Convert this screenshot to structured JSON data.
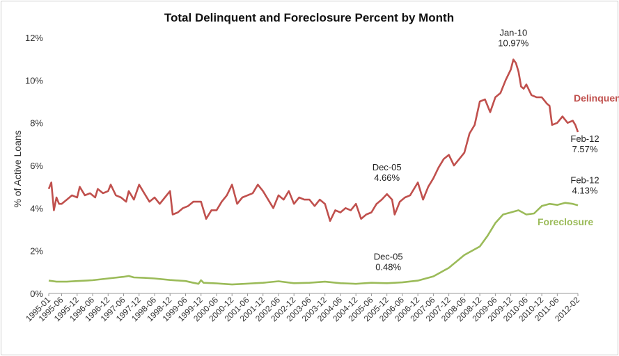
{
  "chart_data": {
    "type": "line",
    "title": "Total Delinquent and Foreclosure Percent by Month",
    "xlabel": "",
    "ylabel": "% of Active Loans",
    "ylim": [
      0,
      12
    ],
    "yticks": [
      "0%",
      "2%",
      "4%",
      "6%",
      "8%",
      "10%",
      "12%"
    ],
    "xticks": [
      "1995-01",
      "1995-06",
      "1995-12",
      "1996-06",
      "1996-12",
      "1997-06",
      "1997-12",
      "1998-06",
      "1998-12",
      "1999-06",
      "1999-12",
      "2000-06",
      "2000-12",
      "2001-06",
      "2001-12",
      "2002-06",
      "2002-12",
      "2003-06",
      "2003-12",
      "2004-06",
      "2004-12",
      "2005-06",
      "2005-12",
      "2006-06",
      "2006-12",
      "2007-06",
      "2007-12",
      "2008-06",
      "2008-12",
      "2009-06",
      "2009-12",
      "2010-06",
      "2010-12",
      "2011-06",
      "2012-02"
    ],
    "grid": false,
    "legend": "inline labels",
    "x_start": "1995-01",
    "x_end": "2012-02",
    "series": [
      {
        "name": "Delinquent",
        "color": "#c0504d",
        "points": [
          [
            "1995-01",
            4.9
          ],
          [
            "1995-02",
            5.2
          ],
          [
            "1995-03",
            3.9
          ],
          [
            "1995-04",
            4.5
          ],
          [
            "1995-05",
            4.2
          ],
          [
            "1995-06",
            4.2
          ],
          [
            "1995-08",
            4.4
          ],
          [
            "1995-10",
            4.6
          ],
          [
            "1995-12",
            4.5
          ],
          [
            "1996-01",
            5.0
          ],
          [
            "1996-03",
            4.6
          ],
          [
            "1996-05",
            4.7
          ],
          [
            "1996-07",
            4.5
          ],
          [
            "1996-08",
            4.9
          ],
          [
            "1996-10",
            4.7
          ],
          [
            "1996-12",
            4.8
          ],
          [
            "1997-01",
            5.1
          ],
          [
            "1997-03",
            4.6
          ],
          [
            "1997-05",
            4.5
          ],
          [
            "1997-07",
            4.3
          ],
          [
            "1997-08",
            4.8
          ],
          [
            "1997-10",
            4.4
          ],
          [
            "1997-12",
            5.1
          ],
          [
            "1998-02",
            4.7
          ],
          [
            "1998-04",
            4.3
          ],
          [
            "1998-06",
            4.5
          ],
          [
            "1998-08",
            4.2
          ],
          [
            "1998-10",
            4.5
          ],
          [
            "1998-12",
            4.8
          ],
          [
            "1999-01",
            3.7
          ],
          [
            "1999-03",
            3.8
          ],
          [
            "1999-05",
            4.0
          ],
          [
            "1999-07",
            4.1
          ],
          [
            "1999-09",
            4.3
          ],
          [
            "1999-12",
            4.3
          ],
          [
            "2000-02",
            3.5
          ],
          [
            "2000-04",
            3.9
          ],
          [
            "2000-06",
            3.9
          ],
          [
            "2000-08",
            4.3
          ],
          [
            "2000-10",
            4.6
          ],
          [
            "2000-12",
            5.1
          ],
          [
            "2001-02",
            4.2
          ],
          [
            "2001-04",
            4.5
          ],
          [
            "2001-06",
            4.6
          ],
          [
            "2001-08",
            4.7
          ],
          [
            "2001-10",
            5.1
          ],
          [
            "2001-12",
            4.8
          ],
          [
            "2002-02",
            4.4
          ],
          [
            "2002-04",
            4.0
          ],
          [
            "2002-06",
            4.6
          ],
          [
            "2002-08",
            4.4
          ],
          [
            "2002-10",
            4.8
          ],
          [
            "2002-12",
            4.2
          ],
          [
            "2003-02",
            4.5
          ],
          [
            "2003-04",
            4.4
          ],
          [
            "2003-06",
            4.4
          ],
          [
            "2003-08",
            4.1
          ],
          [
            "2003-10",
            4.4
          ],
          [
            "2003-12",
            4.2
          ],
          [
            "2004-02",
            3.4
          ],
          [
            "2004-04",
            3.9
          ],
          [
            "2004-06",
            3.8
          ],
          [
            "2004-08",
            4.0
          ],
          [
            "2004-10",
            3.9
          ],
          [
            "2004-12",
            4.2
          ],
          [
            "2005-02",
            3.5
          ],
          [
            "2005-04",
            3.7
          ],
          [
            "2005-06",
            3.8
          ],
          [
            "2005-08",
            4.2
          ],
          [
            "2005-10",
            4.4
          ],
          [
            "2005-12",
            4.66
          ],
          [
            "2006-02",
            4.4
          ],
          [
            "2006-03",
            3.7
          ],
          [
            "2006-05",
            4.3
          ],
          [
            "2006-07",
            4.5
          ],
          [
            "2006-09",
            4.6
          ],
          [
            "2006-12",
            5.2
          ],
          [
            "2007-02",
            4.4
          ],
          [
            "2007-04",
            5.0
          ],
          [
            "2007-06",
            5.4
          ],
          [
            "2007-08",
            5.9
          ],
          [
            "2007-10",
            6.3
          ],
          [
            "2007-12",
            6.5
          ],
          [
            "2008-02",
            6.0
          ],
          [
            "2008-04",
            6.3
          ],
          [
            "2008-06",
            6.6
          ],
          [
            "2008-08",
            7.5
          ],
          [
            "2008-10",
            7.9
          ],
          [
            "2008-12",
            9.0
          ],
          [
            "2009-02",
            9.1
          ],
          [
            "2009-04",
            8.5
          ],
          [
            "2009-06",
            9.2
          ],
          [
            "2009-08",
            9.4
          ],
          [
            "2009-10",
            10.0
          ],
          [
            "2009-12",
            10.5
          ],
          [
            "2010-01",
            10.97
          ],
          [
            "2010-02",
            10.8
          ],
          [
            "2010-03",
            10.4
          ],
          [
            "2010-04",
            9.7
          ],
          [
            "2010-05",
            9.6
          ],
          [
            "2010-06",
            9.8
          ],
          [
            "2010-08",
            9.3
          ],
          [
            "2010-10",
            9.2
          ],
          [
            "2010-12",
            9.2
          ],
          [
            "2011-02",
            8.9
          ],
          [
            "2011-03",
            8.8
          ],
          [
            "2011-04",
            7.9
          ],
          [
            "2011-06",
            8.0
          ],
          [
            "2011-08",
            8.3
          ],
          [
            "2011-10",
            8.0
          ],
          [
            "2011-12",
            8.1
          ],
          [
            "2012-01",
            7.9
          ],
          [
            "2012-02",
            7.57
          ]
        ]
      },
      {
        "name": "Foreclosure",
        "color": "#9bbb59",
        "points": [
          [
            "1995-01",
            0.6
          ],
          [
            "1995-04",
            0.55
          ],
          [
            "1995-08",
            0.55
          ],
          [
            "1995-12",
            0.58
          ],
          [
            "1996-06",
            0.62
          ],
          [
            "1996-12",
            0.7
          ],
          [
            "1997-06",
            0.78
          ],
          [
            "1997-08",
            0.82
          ],
          [
            "1997-10",
            0.75
          ],
          [
            "1998-02",
            0.73
          ],
          [
            "1998-06",
            0.7
          ],
          [
            "1998-12",
            0.63
          ],
          [
            "1999-06",
            0.58
          ],
          [
            "1999-09",
            0.5
          ],
          [
            "1999-11",
            0.45
          ],
          [
            "1999-12",
            0.62
          ],
          [
            "2000-01",
            0.5
          ],
          [
            "2000-06",
            0.47
          ],
          [
            "2000-12",
            0.42
          ],
          [
            "2001-06",
            0.46
          ],
          [
            "2001-12",
            0.5
          ],
          [
            "2002-06",
            0.57
          ],
          [
            "2002-12",
            0.48
          ],
          [
            "2003-06",
            0.5
          ],
          [
            "2003-12",
            0.55
          ],
          [
            "2004-06",
            0.48
          ],
          [
            "2004-12",
            0.45
          ],
          [
            "2005-06",
            0.5
          ],
          [
            "2005-12",
            0.48
          ],
          [
            "2006-06",
            0.52
          ],
          [
            "2006-12",
            0.6
          ],
          [
            "2007-06",
            0.8
          ],
          [
            "2007-12",
            1.2
          ],
          [
            "2008-06",
            1.8
          ],
          [
            "2008-12",
            2.2
          ],
          [
            "2009-03",
            2.7
          ],
          [
            "2009-06",
            3.3
          ],
          [
            "2009-09",
            3.7
          ],
          [
            "2009-12",
            3.8
          ],
          [
            "2010-03",
            3.9
          ],
          [
            "2010-06",
            3.7
          ],
          [
            "2010-09",
            3.75
          ],
          [
            "2010-12",
            4.1
          ],
          [
            "2011-03",
            4.2
          ],
          [
            "2011-06",
            4.15
          ],
          [
            "2011-09",
            4.25
          ],
          [
            "2011-12",
            4.2
          ],
          [
            "2012-02",
            4.13
          ]
        ]
      }
    ],
    "annotations": [
      {
        "series": "Delinquent",
        "x": "2010-01",
        "y": 10.97,
        "lines": [
          "Jan-10",
          "10.97%"
        ]
      },
      {
        "series": "Delinquent",
        "x": "2005-12",
        "y": 4.66,
        "lines": [
          "Dec-05",
          "4.66%"
        ]
      },
      {
        "series": "Delinquent",
        "x": "2012-02",
        "y": 7.57,
        "lines": [
          "Feb-12",
          "7.57%"
        ]
      },
      {
        "series": "Foreclosure",
        "x": "2005-12",
        "y": 0.48,
        "lines": [
          "Dec-05",
          "0.48%"
        ]
      },
      {
        "series": "Foreclosure",
        "x": "2012-02",
        "y": 4.13,
        "lines": [
          "Feb-12",
          "4.13%"
        ]
      }
    ]
  }
}
